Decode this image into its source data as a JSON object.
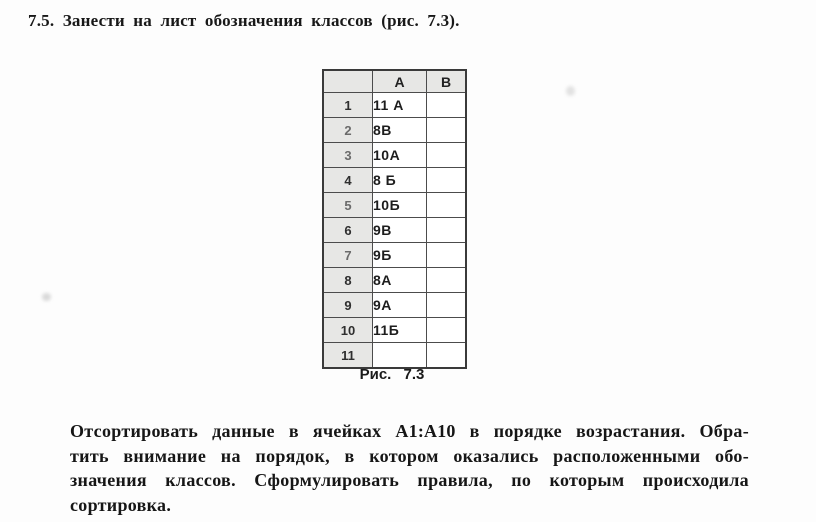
{
  "heading": {
    "text": "7.5. Занести на лист обозначения классов (рис. 7.3)."
  },
  "figure": {
    "caption": "Рис. 7.3",
    "corner_label": "",
    "columns": [
      "A",
      "B"
    ],
    "rows": [
      {
        "n": "1",
        "a": "11 А",
        "b": ""
      },
      {
        "n": "2",
        "a": "8В",
        "b": ""
      },
      {
        "n": "3",
        "a": "10А",
        "b": ""
      },
      {
        "n": "4",
        "a": "8 Б",
        "b": ""
      },
      {
        "n": "5",
        "a": "10Б",
        "b": ""
      },
      {
        "n": "6",
        "a": "9В",
        "b": ""
      },
      {
        "n": "7",
        "a": "9Б",
        "b": ""
      },
      {
        "n": "8",
        "a": "8А",
        "b": ""
      },
      {
        "n": "9",
        "a": "9А",
        "b": ""
      },
      {
        "n": "10",
        "a": "11Б",
        "b": ""
      },
      {
        "n": "11",
        "a": "",
        "b": ""
      }
    ]
  },
  "paragraph": {
    "lines": [
      {
        "pre": "Отсортировать данные в ячейках ",
        "bold": "A1:A10",
        "post": " в порядке возрастания. Обра-"
      },
      {
        "text": "тить внимание на порядок, в котором оказались расположенными обо-"
      },
      {
        "text": "значения классов. Сформулировать правила, по которым происходила"
      },
      {
        "text": "сортировка."
      }
    ]
  }
}
